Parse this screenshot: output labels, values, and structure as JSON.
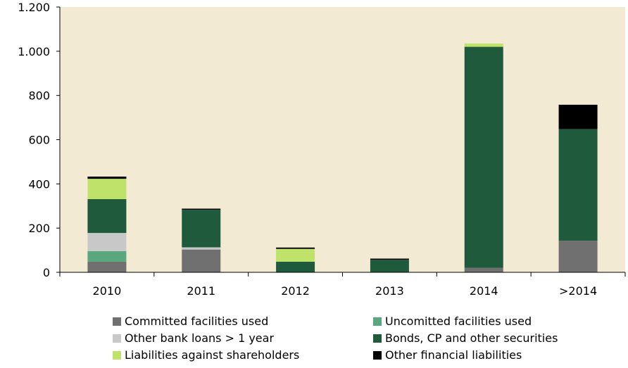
{
  "chart_data": {
    "type": "bar",
    "stacked": true,
    "categories": [
      "2010",
      "2011",
      "2012",
      "2013",
      "2014",
      ">2014"
    ],
    "ylim": [
      0,
      1200
    ],
    "yticks": [
      0,
      200,
      400,
      600,
      800,
      1000,
      1200
    ],
    "ytick_labels": [
      "0",
      "200",
      "400",
      "600",
      "800",
      "1.000",
      "1.200"
    ],
    "plot_background": "#f3ead3",
    "legend_position": "bottom",
    "series": [
      {
        "name": "Committed facilities used",
        "color": "#707070",
        "values": [
          48,
          103,
          0,
          0,
          20,
          143
        ]
      },
      {
        "name": "Uncomitted facilities used",
        "color": "#5aa77e",
        "values": [
          48,
          0,
          0,
          0,
          0,
          0
        ]
      },
      {
        "name": "Other bank loans > 1 year",
        "color": "#c8c8c8",
        "values": [
          82,
          10,
          0,
          0,
          0,
          0
        ]
      },
      {
        "name": "Bonds, CP and other securities",
        "color": "#1f5a3d",
        "values": [
          153,
          170,
          48,
          57,
          1000,
          505
        ]
      },
      {
        "name": "Liabilities against shareholders",
        "color": "#bfe36a",
        "values": [
          92,
          0,
          58,
          0,
          15,
          0
        ]
      },
      {
        "name": "Other financial liabilities",
        "color": "#000000",
        "values": [
          10,
          5,
          6,
          5,
          0,
          110
        ]
      }
    ]
  }
}
